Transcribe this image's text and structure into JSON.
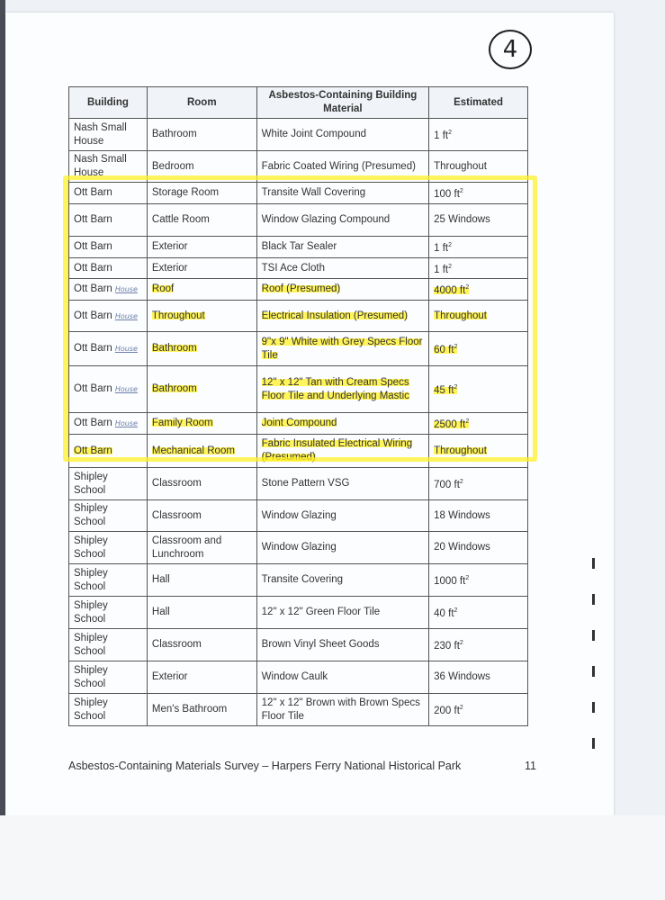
{
  "page_marker": "4",
  "table": {
    "headers": [
      "Building",
      "Room",
      "Asbestos-Containing Building Material",
      "Estimated"
    ],
    "rows": [
      {
        "building": "Nash Small House",
        "room": "Bathroom",
        "material": "White Joint Compound",
        "estimated": "1 ft",
        "sup": "2",
        "h": 36
      },
      {
        "building": "Nash Small House",
        "room": "Bedroom",
        "material": "Fabric Coated Wiring (Presumed)",
        "estimated": "Throughout",
        "h": 35
      },
      {
        "building": "Ott Barn",
        "room": "Storage Room",
        "material": "Transite  Wall Covering",
        "estimated": "100 ft",
        "sup": "2",
        "h": 22
      },
      {
        "building": "Ott Barn",
        "room": "Cattle Room",
        "material": "Window Glazing Compound",
        "estimated": "25 Windows",
        "h": 36
      },
      {
        "building": "Ott Barn",
        "room": "Exterior",
        "material": "Black Tar Sealer",
        "estimated": "1 ft",
        "sup": "2",
        "h": 20
      },
      {
        "building": "Ott Barn",
        "room": "Exterior",
        "material": "TSI Ace Cloth",
        "estimated": "1 ft",
        "sup": "2",
        "h": 21
      },
      {
        "building": "Ott Barn",
        "note": "House",
        "room": "Roof",
        "material": "Roof (Presumed)",
        "estimated": "4000 ft",
        "sup": "2",
        "h": 21,
        "highlight": true
      },
      {
        "building": "Ott Barn",
        "note": "House",
        "room": "Throughout",
        "material": "Electrical Insulation (Presumed)",
        "estimated": "Throughout",
        "h": 35,
        "highlight": true
      },
      {
        "building": "Ott Barn",
        "note": "House",
        "room": "Bathroom",
        "material": "9\"x 9\" White with Grey Specs Floor Tile",
        "estimated": "60 ft",
        "sup": "2",
        "h": 38,
        "highlight": true
      },
      {
        "building": "Ott Barn",
        "note": "House",
        "room": "Bathroom",
        "material": "12\" x 12\" Tan with Cream Specs Floor Tile and Underlying Mastic",
        "estimated": "45 ft",
        "sup": "2",
        "h": 52,
        "highlight": true
      },
      {
        "building": "Ott Barn",
        "note": "House",
        "room": "Family Room",
        "material": "Joint Compound",
        "estimated": "2500 ft",
        "sup": "2",
        "h": 21,
        "highlight": true
      },
      {
        "building": "Ott Barn",
        "room": "Mechanical Room",
        "material": "Fabric Insulated Electrical Wiring (Presumed)",
        "estimated": "Throughout",
        "h": 37,
        "highlight": true
      },
      {
        "building": "Shipley School",
        "room": "Classroom",
        "material": "Stone Pattern VSG",
        "estimated": "700 ft",
        "sup": "2",
        "h": 36
      },
      {
        "building": "Shipley School",
        "room": "Classroom",
        "material": "Window Glazing",
        "estimated": "18 Windows",
        "h": 35
      },
      {
        "building": "Shipley School",
        "room": "Classroom and Lunchroom",
        "material": "Window Glazing",
        "estimated": "20 Windows",
        "h": 36
      },
      {
        "building": "Shipley School",
        "room": "Hall",
        "material": "Transite Covering",
        "estimated": "1000 ft",
        "sup": "2",
        "h": 36
      },
      {
        "building": "Shipley School",
        "room": "Hall",
        "material": "12\" x 12\" Green Floor Tile",
        "estimated": "40 ft",
        "sup": "2",
        "h": 36
      },
      {
        "building": "Shipley School",
        "room": "Classroom",
        "material": "Brown Vinyl Sheet Goods",
        "estimated": "230 ft",
        "sup": "2",
        "h": 36
      },
      {
        "building": "Shipley School",
        "room": "Exterior",
        "material": "Window Caulk",
        "estimated": "36 Windows",
        "h": 36
      },
      {
        "building": "Shipley School",
        "room": "Men's Bathroom",
        "material": "12\" x 12\" Brown with Brown Specs Floor Tile",
        "estimated": "200 ft",
        "sup": "2",
        "h": 36
      }
    ]
  },
  "footer": {
    "title": "Asbestos-Containing Materials Survey – Harpers Ferry National Historical Park",
    "page_number": "11"
  },
  "colors": {
    "highlighter": "#fff45a",
    "ink": "#333333"
  }
}
